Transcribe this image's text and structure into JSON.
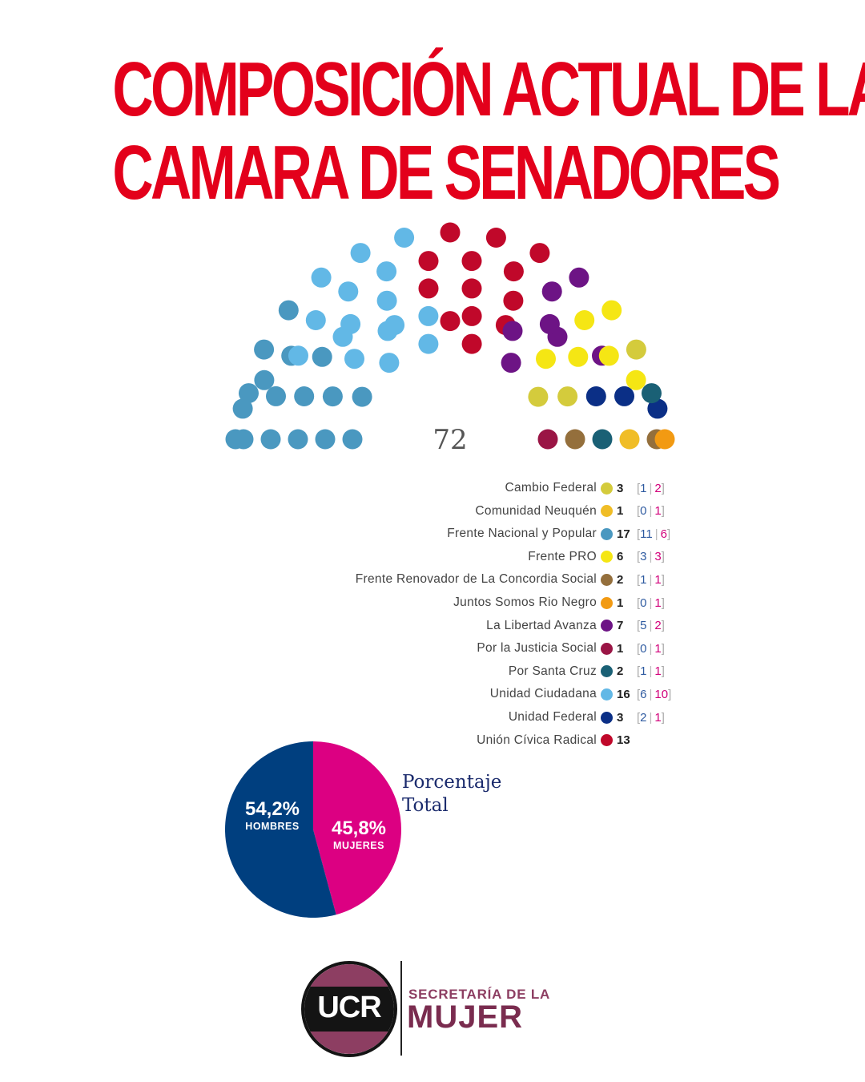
{
  "title": {
    "line1": "COMPOSICIÓN ACTUAL DE LA",
    "line2": "CAMARA DE  SENADORES"
  },
  "chart_data": [
    {
      "type": "parliament",
      "total_label": "72",
      "parties": [
        {
          "name": "Frente Nacional y Popular",
          "seats": 17,
          "men": 11,
          "women": 6,
          "color": "#4a98c0"
        },
        {
          "name": "Unidad Ciudadana",
          "seats": 16,
          "men": 6,
          "women": 10,
          "color": "#62b8e6"
        },
        {
          "name": "Unión Cívica Radical",
          "seats": 13,
          "men": null,
          "women": null,
          "color": "#c0082a"
        },
        {
          "name": "La Libertad Avanza",
          "seats": 7,
          "men": 5,
          "women": 2,
          "color": "#6d1485"
        },
        {
          "name": "Frente PRO",
          "seats": 6,
          "men": 3,
          "women": 3,
          "color": "#f5e614"
        },
        {
          "name": "Cambio Federal",
          "seats": 3,
          "men": 1,
          "women": 2,
          "color": "#d4cb3c"
        },
        {
          "name": "Unidad Federal",
          "seats": 3,
          "men": 2,
          "women": 1,
          "color": "#0b2f86"
        },
        {
          "name": "Por Santa Cruz",
          "seats": 2,
          "men": 1,
          "women": 1,
          "color": "#1a6075"
        },
        {
          "name": "Por la Justicia Social",
          "seats": 1,
          "men": 0,
          "women": 1,
          "color": "#9a1545"
        },
        {
          "name": "Frente Renovador de La Concordia Social",
          "seats": 2,
          "men": 1,
          "women": 1,
          "color": "#946f3c"
        },
        {
          "name": "Juntos Somos Rio Negro",
          "seats": 1,
          "men": 0,
          "women": 1,
          "color": "#f29a12"
        },
        {
          "name": "Comunidad Neuquén",
          "seats": 1,
          "men": 0,
          "women": 1,
          "color": "#f0bd26"
        }
      ]
    },
    {
      "type": "pie",
      "caption": [
        "Porcentaje",
        "Total"
      ],
      "slices": [
        {
          "label": "HOMBRES",
          "value": 54.2,
          "text": "54,2%",
          "color": "#003f7f"
        },
        {
          "label": "MUJERES",
          "value": 45.8,
          "text": "45,8%",
          "color": "#dc0082"
        }
      ]
    }
  ],
  "legend": [
    {
      "name": "Cambio Federal",
      "color": "#d4cb3c",
      "total": "3",
      "men": "1",
      "women": "2"
    },
    {
      "name": "Comunidad Neuquén",
      "color": "#f0bd26",
      "total": "1",
      "men": "0",
      "women": "1"
    },
    {
      "name": "Frente Nacional y Popular",
      "color": "#4a98c0",
      "total": "17",
      "men": "11",
      "women": "6"
    },
    {
      "name": "Frente PRO",
      "color": "#f5e614",
      "total": "6",
      "men": "3",
      "women": "3"
    },
    {
      "name": "Frente Renovador de La Concordia Social",
      "color": "#946f3c",
      "total": "2",
      "men": "1",
      "women": "1"
    },
    {
      "name": "Juntos Somos Rio Negro",
      "color": "#f29a12",
      "total": "1",
      "men": "0",
      "women": "1"
    },
    {
      "name": "La Libertad Avanza",
      "color": "#6d1485",
      "total": "7",
      "men": "5",
      "women": "2"
    },
    {
      "name": "Por la Justicia Social",
      "color": "#9a1545",
      "total": "1",
      "men": "0",
      "women": "1"
    },
    {
      "name": "Por Santa Cruz",
      "color": "#1a6075",
      "total": "2",
      "men": "1",
      "women": "1"
    },
    {
      "name": "Unidad Ciudadana",
      "color": "#62b8e6",
      "total": "16",
      "men": "6",
      "women": "10"
    },
    {
      "name": "Unidad Federal",
      "color": "#0b2f86",
      "total": "3",
      "men": "2",
      "women": "1"
    },
    {
      "name": "Unión Cívica Radical",
      "color": "#c0082a",
      "total": "13",
      "men": "",
      "women": ""
    }
  ],
  "logo": {
    "text": "UCR",
    "line1": "SECRETARÍA DE LA",
    "line2": "MUJER",
    "colors": {
      "primary": "#8d3e62",
      "dark": "#141414"
    }
  }
}
